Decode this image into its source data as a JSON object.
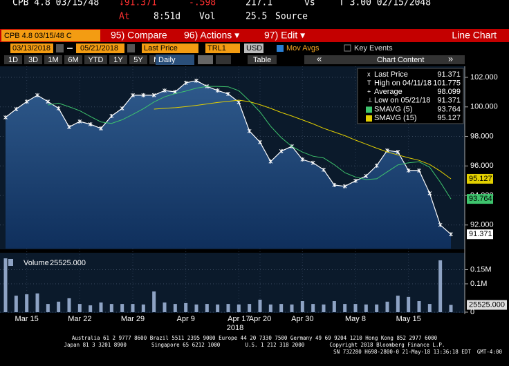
{
  "header": {
    "row1": [
      "CPB 4.8 03/15/48",
      "↓91.371",
      "-.598",
      "217.1",
      "vs",
      "T 3.00 02/15/2048"
    ],
    "row2": [
      "At",
      "8:51d",
      "Vol",
      "25.5",
      "Source"
    ]
  },
  "toolbar": {
    "security": "CPB 4.8 03/15/48 C",
    "compare": "95) Compare",
    "actions": "96) Actions ▾",
    "edit": "97) Edit ▾",
    "view": "Line Chart"
  },
  "controls": {
    "start": "03/13/2018",
    "end": "05/21/2018",
    "field": "Last Price",
    "ticker": "TRL1",
    "currency": "USD",
    "mov_avgs": "Mov Avgs",
    "key_events": "Key Events"
  },
  "periods": [
    "1D",
    "3D",
    "1M",
    "6M",
    "YTD",
    "1Y",
    "5Y",
    "Max"
  ],
  "frequency": "Daily",
  "table": "Table",
  "chart_content": "Chart Content",
  "chart_data": [
    {
      "type": "line",
      "x_axis_year": "2018",
      "categories": [
        null,
        null,
        "Mar 15",
        null,
        null,
        null,
        null,
        "Mar 22",
        null,
        null,
        null,
        null,
        "Mar 29",
        null,
        null,
        null,
        null,
        "Apr 9",
        null,
        null,
        null,
        null,
        "Apr 17",
        null,
        "Apr 20",
        null,
        null,
        null,
        "Apr 30",
        null,
        null,
        null,
        null,
        "May 8",
        null,
        null,
        null,
        null,
        "May 15",
        null,
        null,
        null,
        null
      ],
      "ylim": [
        90.4,
        102.75
      ],
      "yticks": [
        {
          "value": 92,
          "label": "92.000"
        },
        {
          "value": 94,
          "label": "94.000"
        },
        {
          "value": 96,
          "label": "96.000"
        },
        {
          "value": 98,
          "label": "98.000"
        },
        {
          "value": 100,
          "label": "100.000"
        },
        {
          "value": 102,
          "label": "102.000"
        }
      ],
      "grid": true,
      "series": [
        {
          "name": "Last Price",
          "color": "#ffffff",
          "values": [
            99.29,
            99.85,
            100.36,
            100.79,
            100.36,
            99.9,
            98.64,
            99.01,
            98.82,
            98.54,
            99.38,
            99.9,
            100.79,
            100.79,
            100.79,
            101.11,
            101.02,
            101.63,
            101.775,
            101.39,
            101.11,
            100.88,
            100.32,
            98.36,
            97.61,
            96.3,
            97.0,
            97.33,
            96.44,
            96.21,
            95.74,
            94.71,
            94.62,
            94.99,
            95.32,
            96.02,
            97.05,
            96.95,
            95.69,
            95.69,
            94.15,
            92.0,
            91.371
          ]
        },
        {
          "name": "SMAVG (5)",
          "color": "#3ec46d",
          "values": [
            null,
            null,
            null,
            null,
            100.13,
            100.25,
            100.01,
            99.74,
            99.35,
            98.98,
            98.88,
            99.13,
            99.49,
            99.88,
            100.33,
            100.68,
            100.9,
            101.07,
            101.27,
            101.39,
            101.39,
            101.36,
            101.1,
            100.41,
            99.66,
            98.69,
            97.92,
            97.32,
            96.94,
            96.66,
            96.54,
            96.09,
            95.54,
            95.25,
            95.08,
            95.13,
            95.6,
            96.07,
            96.21,
            96.28,
            95.91,
            94.9,
            93.764
          ]
        },
        {
          "name": "SMAVG (15)",
          "color": "#e3d000",
          "values": [
            null,
            null,
            null,
            null,
            null,
            null,
            null,
            null,
            null,
            null,
            null,
            null,
            null,
            null,
            99.85,
            99.9,
            99.95,
            100.02,
            100.1,
            100.2,
            100.3,
            100.38,
            100.46,
            100.35,
            100.15,
            99.9,
            99.62,
            99.38,
            99.12,
            98.85,
            98.55,
            98.3,
            98.05,
            97.75,
            97.48,
            97.2,
            96.95,
            96.75,
            96.55,
            96.38,
            96.1,
            95.65,
            95.127
          ]
        }
      ],
      "stats": [
        {
          "label": "High on 04/11/18",
          "value": 101.775
        },
        {
          "label": "Average",
          "value": 98.099
        },
        {
          "label": "Low on 05/21/18",
          "value": 91.371
        }
      ]
    },
    {
      "type": "bar",
      "ylim": [
        0,
        200000
      ],
      "yticks": [
        0,
        {
          "value": 100000,
          "label": "0.1M"
        },
        {
          "value": 150000,
          "label": "0.15M"
        }
      ],
      "last_label": "25525.000",
      "series": [
        {
          "name": "Volume",
          "color": "#8ea3c4",
          "values": [
            190000,
            58000,
            63000,
            66000,
            29000,
            37000,
            49000,
            29000,
            24000,
            34000,
            29000,
            29000,
            29000,
            27000,
            73000,
            34000,
            29000,
            32000,
            27000,
            29000,
            27000,
            29000,
            27000,
            29000,
            44000,
            27000,
            29000,
            27000,
            39000,
            29000,
            27000,
            39000,
            29000,
            29000,
            27000,
            27000,
            37000,
            58000,
            54000,
            39000,
            29000,
            183000,
            25525
          ]
        }
      ]
    }
  ],
  "footer": [
    "Australia 61 2 9777 8600 Brazil 5511 2395 9000 Europe 44 20 7330 7500 Germany 49 69 9204 1210 Hong Kong 852 2977 6000",
    "Japan 81 3 3201 8900        Singapore 65 6212 1000        U.S. 1 212 318 2000        Copyright 2018 Bloomberg Finance L.P.",
    "SN 732280 H698-2800-0 21-May-18 13:36:18 EDT  GMT-4:00"
  ]
}
